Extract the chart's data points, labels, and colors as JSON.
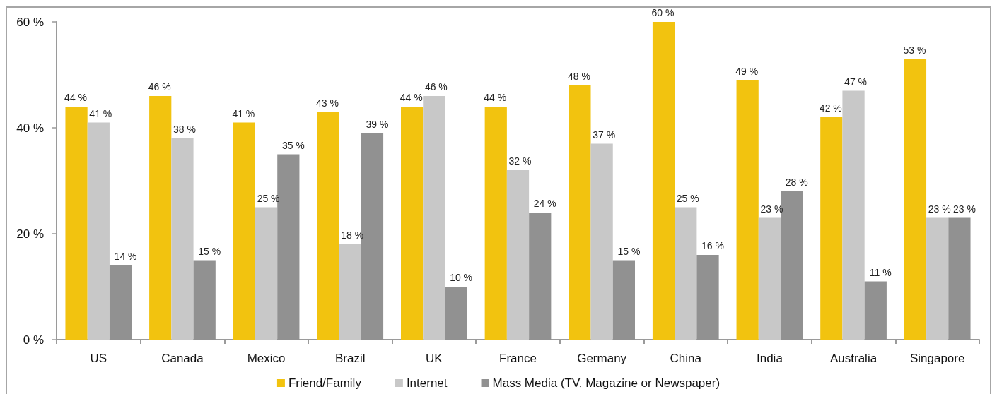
{
  "chart_data": {
    "type": "bar",
    "categories": [
      "US",
      "Canada",
      "Mexico",
      "Brazil",
      "UK",
      "France",
      "Germany",
      "China",
      "India",
      "Australia",
      "Singapore"
    ],
    "series": [
      {
        "name": "Friend/Family",
        "color": "#f2c30f",
        "values": [
          44,
          46,
          41,
          43,
          44,
          44,
          48,
          60,
          49,
          42,
          53
        ],
        "value_labels": [
          "44 %",
          "46 %",
          "41 %",
          "43 %",
          "44 %",
          "44 %",
          "48 %",
          "60 %",
          "49 %",
          "42 %",
          "53 %"
        ]
      },
      {
        "name": "Internet",
        "color": "#c8c8c8",
        "values": [
          41,
          38,
          25,
          18,
          46,
          32,
          37,
          25,
          23,
          47,
          23
        ],
        "value_labels": [
          "41 %",
          "38 %",
          "25 %",
          "18 %",
          "46 %",
          "32 %",
          "37 %",
          "25 %",
          "23 %",
          "47 %",
          "23 %"
        ]
      },
      {
        "name": "Mass Media (TV, Magazine or Newspaper)",
        "color": "#919191",
        "values": [
          14,
          15,
          35,
          39,
          10,
          24,
          15,
          16,
          28,
          11,
          23
        ],
        "value_labels": [
          "14 %",
          "15 %",
          "35 %",
          "39 %",
          "10 %",
          "24 %",
          "15 %",
          "16 %",
          "28 %",
          "11 %",
          "23 %"
        ]
      }
    ],
    "ylim": [
      0,
      60
    ],
    "yticks": [
      {
        "value": 0,
        "label": "0 %"
      },
      {
        "value": 20,
        "label": "20 %"
      },
      {
        "value": 40,
        "label": "40 %"
      },
      {
        "value": 60,
        "label": "60 %"
      }
    ],
    "legend": "bottom"
  }
}
